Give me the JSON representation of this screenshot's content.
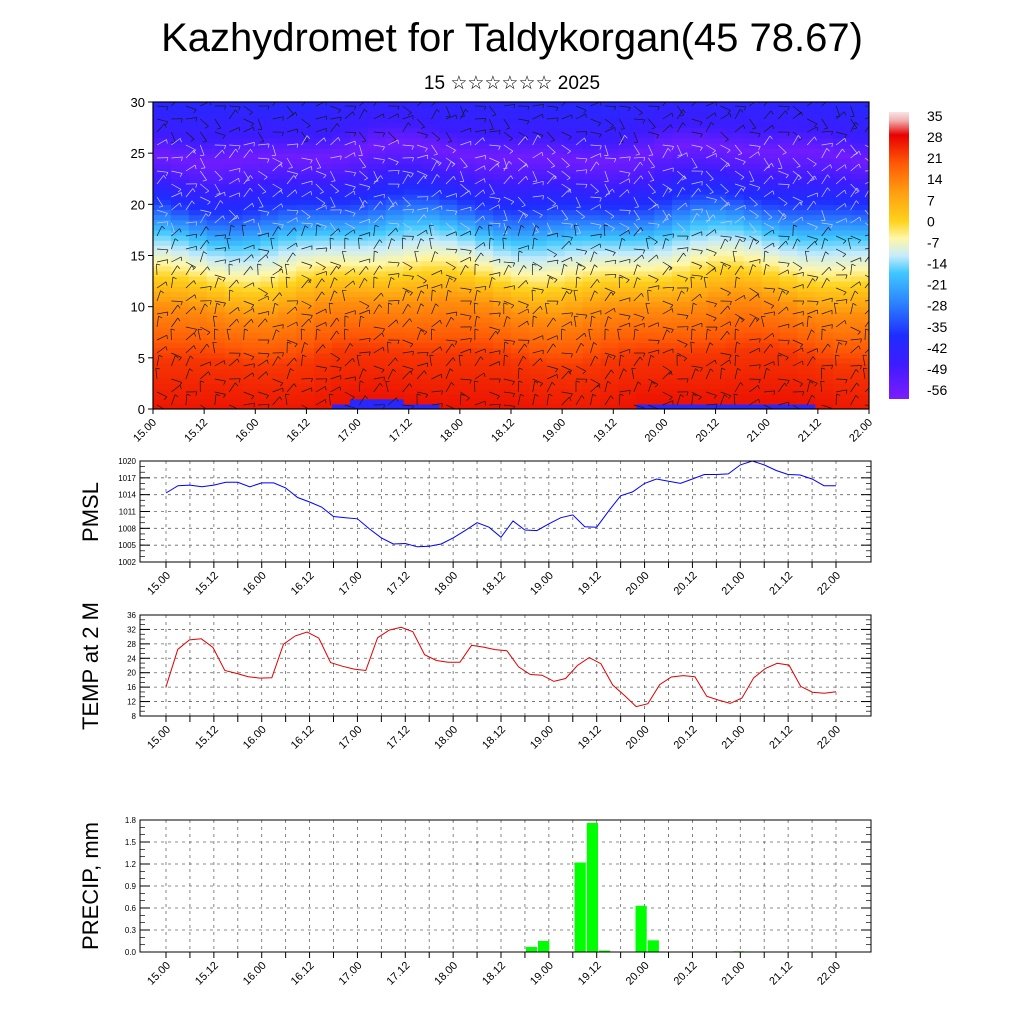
{
  "header": {
    "title": "Kazhydromet for Taldykorgan(45 78.67)",
    "subtitle": "15 ☆☆☆☆☆☆ 2025"
  },
  "x_labels": [
    "15.00",
    "15.12",
    "16.00",
    "16.12",
    "17.00",
    "17.12",
    "18.00",
    "18.12",
    "19.00",
    "19.12",
    "20.00",
    "20.12",
    "21.00",
    "21.12",
    "22.00"
  ],
  "chart_data": [
    {
      "type": "heatmap",
      "title": "",
      "ylim": [
        0,
        30
      ],
      "yticks": [
        0,
        5,
        10,
        15,
        20,
        25,
        30
      ],
      "colorbar": {
        "labels": [
          "35",
          "28",
          "21",
          "14",
          "7",
          "0",
          "-7",
          "-14",
          "-21",
          "-28",
          "-35",
          "-42",
          "-49",
          "-56"
        ],
        "range": [
          -60,
          38
        ]
      },
      "temperature_profile": [
        {
          "height": 0,
          "value": 28
        },
        {
          "height": 5,
          "value": 24
        },
        {
          "height": 10,
          "value": 12
        },
        {
          "height": 14,
          "value": -6
        },
        {
          "height": 17,
          "value": -18
        },
        {
          "height": 20,
          "value": -38
        },
        {
          "height": 23,
          "value": -52
        },
        {
          "height": 25,
          "value": -58
        },
        {
          "height": 27,
          "value": -50
        },
        {
          "height": 30,
          "value": -44
        }
      ],
      "overlay": "wind barbs"
    },
    {
      "type": "line",
      "ylabel": "PMSL",
      "ylim": [
        1002,
        1020
      ],
      "yticks": [
        1002,
        1005,
        1008,
        1011,
        1014,
        1017,
        1020
      ],
      "color": "#0000ff",
      "values": [
        1014.3,
        1015.6,
        1015.7,
        1015.4,
        1015.7,
        1016.2,
        1016.2,
        1015.4,
        1016.1,
        1016.1,
        1015.2,
        1013.5,
        1012.7,
        1011.8,
        1010.1,
        1009.9,
        1009.7,
        1007.9,
        1006.3,
        1005.2,
        1005.3,
        1004.7,
        1004.8,
        1005.2,
        1006.3,
        1007.6,
        1009.0,
        1008.2,
        1006.4,
        1009.3,
        1007.7,
        1007.6,
        1008.8,
        1009.9,
        1010.4,
        1008.3,
        1008.2,
        1011.1,
        1013.8,
        1014.5,
        1016.0,
        1016.8,
        1016.4,
        1016.0,
        1016.8,
        1017.6,
        1017.6,
        1017.7,
        1019.3,
        1020.0,
        1019.3,
        1018.3,
        1017.6,
        1017.5,
        1016.8,
        1015.6,
        1015.6
      ]
    },
    {
      "type": "line",
      "ylabel": "TEMP at 2 M",
      "ylim": [
        8,
        36
      ],
      "yticks": [
        8,
        12,
        16,
        20,
        24,
        28,
        32,
        36
      ],
      "color": "#e00000",
      "values": [
        16.1,
        26.5,
        29.1,
        29.4,
        27.0,
        20.6,
        19.8,
        18.9,
        18.5,
        18.6,
        27.9,
        30.2,
        31.3,
        29.6,
        22.8,
        21.8,
        21.0,
        20.6,
        29.7,
        31.8,
        32.6,
        31.4,
        25.0,
        23.4,
        22.9,
        22.9,
        27.6,
        27.1,
        26.4,
        26.1,
        21.6,
        19.5,
        19.3,
        17.6,
        18.4,
        22.0,
        24.2,
        22.5,
        16.6,
        13.7,
        10.6,
        11.4,
        16.7,
        18.8,
        19.2,
        18.9,
        13.5,
        12.4,
        11.5,
        13.0,
        18.6,
        21.2,
        22.6,
        22.1,
        16.2,
        14.6,
        14.3,
        14.7
      ]
    },
    {
      "type": "bar",
      "ylabel": "PRECIP, mm",
      "ylim": [
        0,
        1.8
      ],
      "yticks": [
        "0.0",
        "0.3",
        "0.6",
        "0.9",
        "1.2",
        "1.5",
        "1.8"
      ],
      "color": "#00ff00",
      "values": [
        0,
        0,
        0,
        0,
        0,
        0,
        0,
        0,
        0,
        0,
        0,
        0,
        0,
        0,
        0,
        0,
        0,
        0,
        0,
        0,
        0,
        0,
        0,
        0,
        0,
        0,
        0,
        0,
        0,
        0,
        0.07,
        0.15,
        0,
        0,
        1.22,
        1.76,
        0.02,
        0,
        0,
        0.63,
        0.16,
        0,
        0,
        0,
        0,
        0,
        0,
        0.01,
        0,
        0,
        0,
        0,
        0,
        0,
        0,
        0
      ]
    }
  ]
}
